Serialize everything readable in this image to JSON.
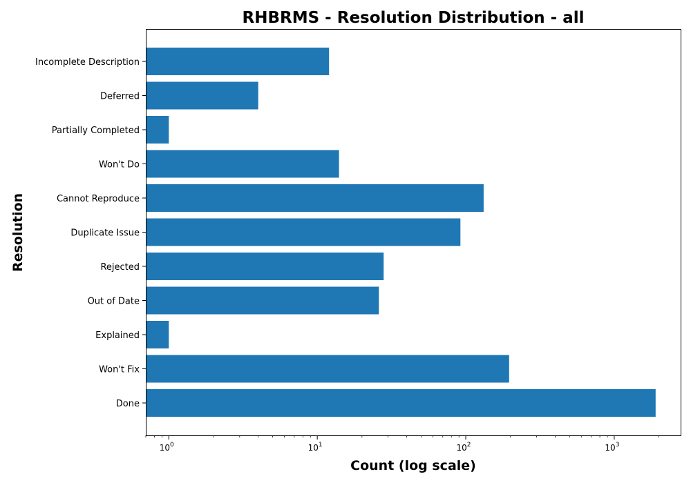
{
  "chart_data": {
    "type": "bar",
    "orientation": "horizontal",
    "title": "RHBRMS - Resolution Distribution - all",
    "xlabel": "Count (log scale)",
    "ylabel": "Resolution",
    "x_scale": "log",
    "xlim": [
      0.7,
      2800
    ],
    "x_ticks": [
      {
        "base": "10",
        "exp": "0",
        "value": 1
      },
      {
        "base": "10",
        "exp": "1",
        "value": 10
      },
      {
        "base": "10",
        "exp": "2",
        "value": 100
      },
      {
        "base": "10",
        "exp": "3",
        "value": 1000
      }
    ],
    "categories": [
      "Incomplete Description",
      "Deferred",
      "Partially Completed",
      "Won't Do",
      "Cannot Reproduce",
      "Duplicate Issue",
      "Rejected",
      "Out of Date",
      "Explained",
      "Won't Fix",
      "Done"
    ],
    "values": [
      12,
      4,
      1,
      14,
      132,
      92,
      28,
      26,
      1,
      196,
      1900
    ],
    "bar_color": "#1f77b4",
    "grid": false,
    "legend": "none"
  }
}
